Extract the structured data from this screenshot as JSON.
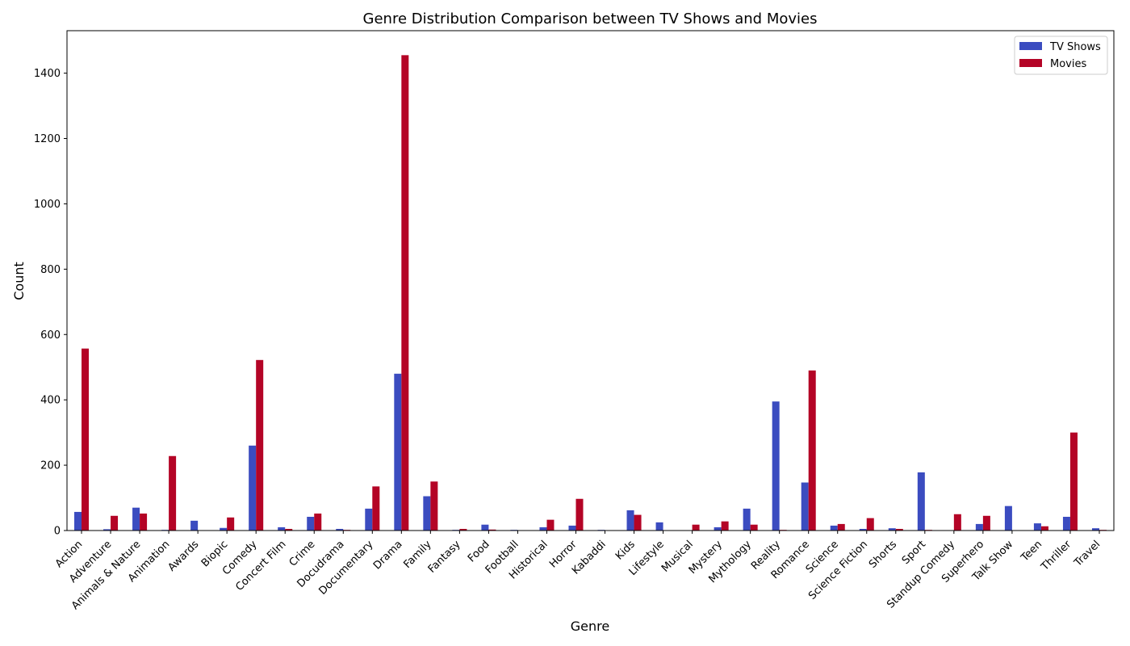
{
  "chart_data": {
    "type": "bar",
    "title": "Genre Distribution Comparison between TV Shows and Movies",
    "xlabel": "Genre",
    "ylabel": "Count",
    "ylim": [
      0,
      1530
    ],
    "yticks": [
      0,
      200,
      400,
      600,
      800,
      1000,
      1200,
      1400
    ],
    "grid": false,
    "legend_position": "top-right",
    "categories": [
      "Action",
      "Adventure",
      "Animals & Nature",
      "Animation",
      "Awards",
      "Biopic",
      "Comedy",
      "Concert Film",
      "Crime",
      "Docudrama",
      "Documentary",
      "Drama",
      "Family",
      "Fantasy",
      "Food",
      "Football",
      "Historical",
      "Horror",
      "Kabaddi",
      "Kids",
      "Lifestyle",
      "Musical",
      "Mystery",
      "Mythology",
      "Reality",
      "Romance",
      "Science",
      "Science Fiction",
      "Shorts",
      "Sport",
      "Standup Comedy",
      "Superhero",
      "Talk Show",
      "Teen",
      "Thriller",
      "Travel"
    ],
    "series": [
      {
        "name": "TV Shows",
        "color": "#3b4cc0",
        "values": [
          57,
          4,
          70,
          2,
          30,
          8,
          260,
          10,
          42,
          5,
          67,
          480,
          105,
          2,
          18,
          2,
          10,
          15,
          2,
          62,
          25,
          1,
          10,
          67,
          395,
          147,
          15,
          5,
          7,
          178,
          1,
          20,
          75,
          22,
          42,
          7
        ]
      },
      {
        "name": "Movies",
        "color": "#b40426",
        "values": [
          557,
          45,
          52,
          228,
          0,
          40,
          522,
          5,
          52,
          2,
          135,
          1455,
          150,
          5,
          3,
          0,
          33,
          97,
          0,
          48,
          0,
          18,
          28,
          18,
          2,
          490,
          20,
          38,
          5,
          2,
          50,
          45,
          0,
          13,
          300,
          2
        ]
      }
    ]
  }
}
